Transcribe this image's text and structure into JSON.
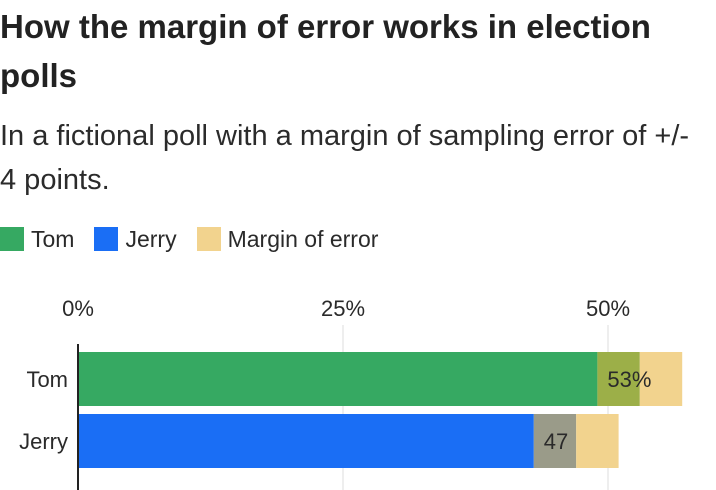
{
  "title": "How the margin of error works in election polls",
  "subtitle": "In a fictional poll with a margin of sampling error of +/- 4 points.",
  "legend": [
    {
      "label": "Tom",
      "color": "#36a962"
    },
    {
      "label": "Jerry",
      "color": "#1a6ef5"
    },
    {
      "label": "Margin of error",
      "color": "#f2d38e"
    }
  ],
  "chart_data": {
    "type": "bar",
    "orientation": "horizontal",
    "title": "How the margin of error works in election polls",
    "subtitle": "In a fictional poll with a margin of sampling error of +/- 4 points.",
    "categories": [
      "Tom",
      "Jerry"
    ],
    "values": [
      53,
      47
    ],
    "value_labels": [
      "53%",
      "47"
    ],
    "margin_of_error": 4,
    "series": [
      {
        "name": "Tom",
        "values": [
          53,
          null
        ],
        "color": "#36a962",
        "overlap_color": "#9caf48"
      },
      {
        "name": "Jerry",
        "values": [
          null,
          47
        ],
        "color": "#1a6ef5",
        "overlap_color": "#9a9b89"
      }
    ],
    "margin_color": "#f2d38e",
    "xticks": [
      0,
      25,
      50
    ],
    "xtick_labels": [
      "0%",
      "25%",
      "50%"
    ],
    "xlim": [
      0,
      60
    ],
    "grid": true,
    "legend_position": "top-left"
  }
}
